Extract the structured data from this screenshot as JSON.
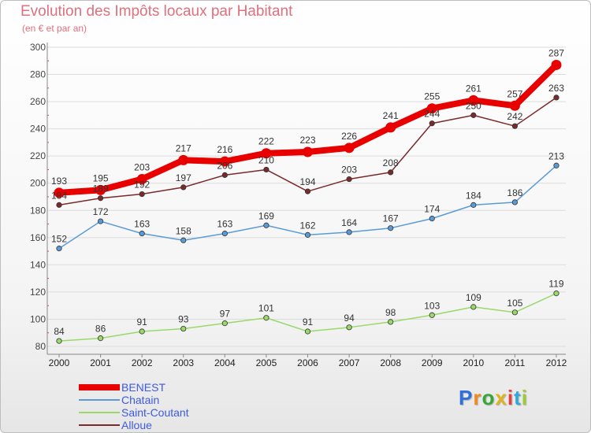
{
  "page": {
    "title": "Evolution des Impôts locaux par Habitant",
    "subtitle": "(en € et par an)",
    "logo_text": "Proxiti",
    "logo_colors": [
      "#2f6fdb",
      "#f08a1c",
      "#3aa63a",
      "#e0b21c",
      "#e83d3d",
      "#2fa8d8",
      "#9acd32"
    ]
  },
  "chart_data": {
    "type": "line",
    "x": [
      "2000",
      "2001",
      "2002",
      "2003",
      "2004",
      "2005",
      "2006",
      "2007",
      "2008",
      "2009",
      "2010",
      "2011",
      "2012"
    ],
    "ylim": [
      80,
      300
    ],
    "yticks": [
      80,
      100,
      120,
      140,
      160,
      180,
      200,
      220,
      240,
      260,
      280,
      300
    ],
    "grid": "horizontal",
    "legend_position": "bottom-left",
    "series": [
      {
        "name": "BENEST",
        "color": "#e80000",
        "values": [
          193,
          195,
          203,
          217,
          216,
          222,
          223,
          226,
          241,
          255,
          261,
          257,
          287
        ]
      },
      {
        "name": "Chatain",
        "color": "#5b9bd5",
        "values": [
          152,
          172,
          163,
          158,
          163,
          169,
          162,
          164,
          167,
          174,
          184,
          186,
          213
        ]
      },
      {
        "name": "Saint-Coutant",
        "color": "#9ad86a",
        "values": [
          84,
          86,
          91,
          93,
          97,
          101,
          91,
          94,
          98,
          103,
          109,
          105,
          119
        ]
      },
      {
        "name": "Alloue",
        "color": "#7a2a2a",
        "values": [
          184,
          189,
          192,
          197,
          206,
          210,
          194,
          203,
          208,
          244,
          250,
          242,
          263
        ]
      }
    ]
  }
}
